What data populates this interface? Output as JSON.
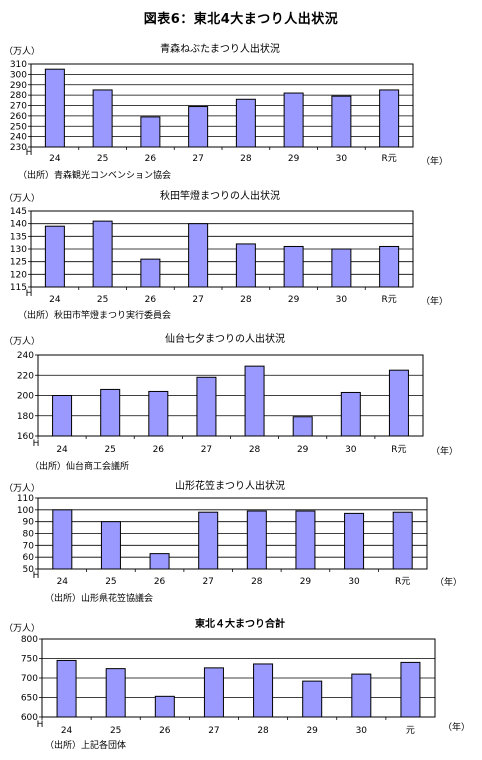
{
  "page": {
    "title": "図表6：東北4大まつり人出状況"
  },
  "chart_data": [
    {
      "type": "bar",
      "title": "青森ねぶたまつり人出状況",
      "y_unit": "（万人）",
      "x_unit": "（年）",
      "x_prefix": "H",
      "categories": [
        "24",
        "25",
        "26",
        "27",
        "28",
        "29",
        "30",
        "R元"
      ],
      "values": [
        305,
        285,
        259,
        269,
        276,
        282,
        279,
        285
      ],
      "ylim": [
        230,
        310
      ],
      "ystep": 10,
      "grid": true,
      "bar_color": "#9999ff",
      "source": "（出所）青森観光コンベンション協会"
    },
    {
      "type": "bar",
      "title": "秋田竿燈まつりの人出状況",
      "y_unit": "（万人）",
      "x_unit": "（年）",
      "x_prefix": "H",
      "categories": [
        "24",
        "25",
        "26",
        "27",
        "28",
        "29",
        "30",
        "R元"
      ],
      "values": [
        139,
        141,
        126,
        140,
        132,
        131,
        130,
        131
      ],
      "ylim": [
        115,
        145
      ],
      "ystep": 5,
      "grid": true,
      "bar_color": "#9999ff",
      "source": "（出所）秋田市竿燈まつり実行委員会"
    },
    {
      "type": "bar",
      "title": "仙台七夕まつりの人出状況",
      "y_unit": "（万人）",
      "x_unit": "（年）",
      "x_prefix": "H",
      "categories": [
        "24",
        "25",
        "26",
        "27",
        "28",
        "29",
        "30",
        "R元"
      ],
      "values": [
        200,
        206,
        204,
        218,
        229,
        179,
        203,
        225
      ],
      "ylim": [
        160,
        240
      ],
      "ystep": 20,
      "grid": true,
      "bar_color": "#9999ff",
      "source": "（出所）仙台商工会議所"
    },
    {
      "type": "bar",
      "title": "山形花笠まつり人出状況",
      "y_unit": "（万人）",
      "x_unit": "（年）",
      "x_prefix": "H",
      "categories": [
        "24",
        "25",
        "26",
        "27",
        "28",
        "29",
        "30",
        "R元"
      ],
      "values": [
        100,
        90,
        63,
        98,
        99,
        99,
        97,
        98
      ],
      "ylim": [
        50,
        110
      ],
      "ystep": 10,
      "grid": true,
      "bar_color": "#9999ff",
      "source": "（出所）山形県花笠協議会"
    },
    {
      "type": "bar",
      "title": "東北４大まつり合計",
      "y_unit": "（万人）",
      "x_unit": "（年）",
      "x_prefix": "H",
      "categories": [
        "24",
        "25",
        "26",
        "27",
        "28",
        "29",
        "30",
        "元"
      ],
      "values": [
        745,
        724,
        653,
        726,
        736,
        692,
        710,
        740
      ],
      "ylim": [
        600,
        800
      ],
      "ystep": 50,
      "grid": true,
      "bar_color": "#9999ff",
      "source": "（出所）上記各団体"
    }
  ]
}
